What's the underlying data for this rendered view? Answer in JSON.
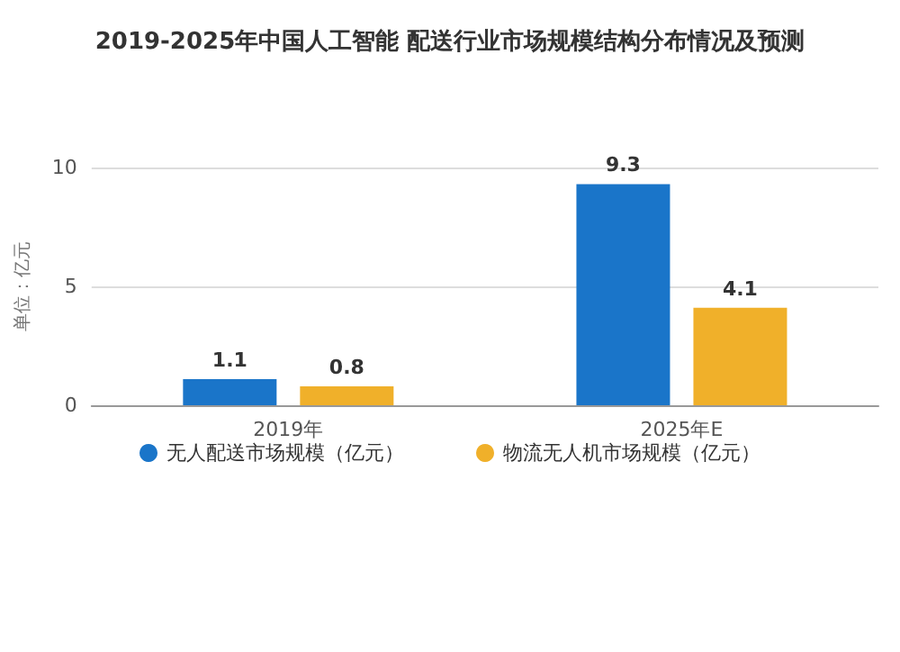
{
  "chart_data": {
    "type": "bar",
    "title": "2019-2025年中国人工智能 配送行业市场规模结构分布情况及预测",
    "ylabel": "单位：亿元",
    "categories": [
      "2019年",
      "2025年E"
    ],
    "series": [
      {
        "name": "无人配送市场规模（亿元）",
        "color": "#1a75c9",
        "values": [
          1.1,
          9.3
        ]
      },
      {
        "name": "物流无人机市场规模（亿元）",
        "color": "#f0b02a",
        "values": [
          0.8,
          4.1
        ]
      }
    ],
    "ylim": [
      0,
      10
    ],
    "yticks": [
      0,
      5,
      10
    ],
    "grid": "y",
    "legend": "bottom",
    "data_labels": true
  }
}
